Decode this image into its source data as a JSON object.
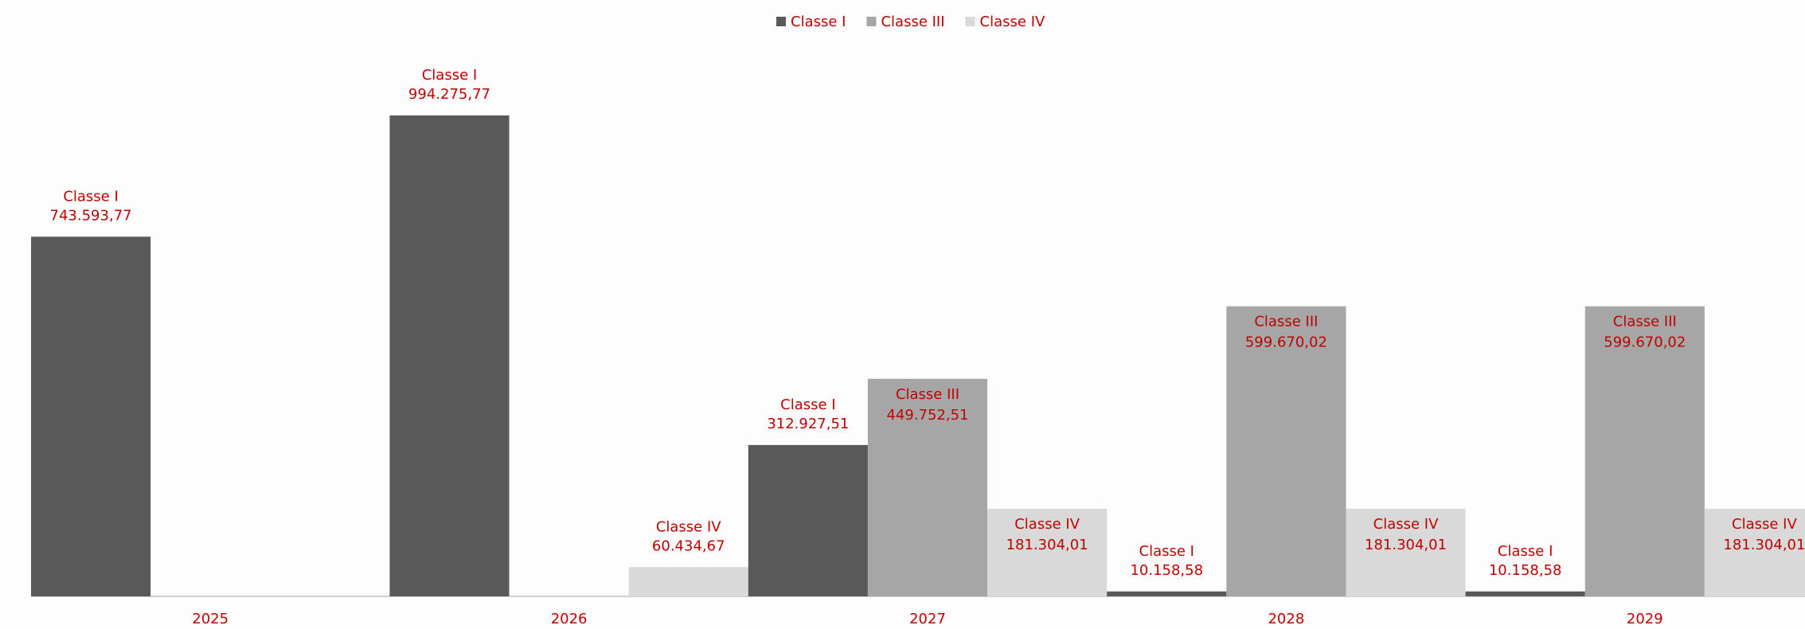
{
  "chart_data": {
    "type": "bar",
    "categories": [
      "2025",
      "2026",
      "2027",
      "2028",
      "2029"
    ],
    "series": [
      {
        "name": "Classe I",
        "color": "#595959",
        "values": [
          743593.77,
          994275.77,
          312927.51,
          10158.58,
          10158.58
        ],
        "value_labels": [
          "743.593,77",
          "994.275,77",
          "312.927,51",
          "10.158,58",
          "10.158,58"
        ]
      },
      {
        "name": "Classe III",
        "color": "#a6a6a6",
        "values": [
          null,
          null,
          449752.51,
          599670.02,
          599670.02
        ],
        "value_labels": [
          null,
          null,
          "449.752,51",
          "599.670,02",
          "599.670,02"
        ]
      },
      {
        "name": "Classe IV",
        "color": "#d9d9d9",
        "values": [
          null,
          60434.67,
          181304.01,
          181304.01,
          181304.01
        ],
        "value_labels": [
          null,
          "60.434,67",
          "181.304,01",
          "181.304,01",
          "181.304,01"
        ]
      }
    ],
    "legend": "top"
  }
}
